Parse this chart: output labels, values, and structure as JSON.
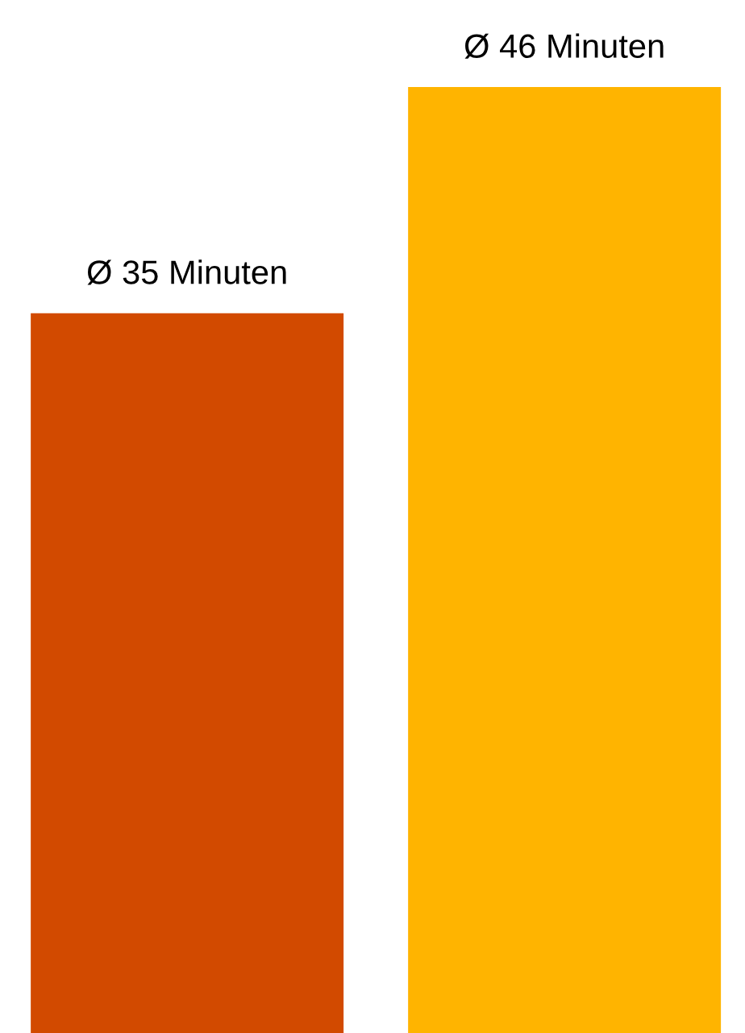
{
  "chart_data": {
    "type": "bar",
    "categories": [
      null,
      null
    ],
    "values": [
      35,
      46
    ],
    "colors": [
      "#d24a00",
      "#ffb400"
    ],
    "value_labels": [
      "Ø 35 Minuten",
      "Ø 46 Minuten"
    ]
  }
}
